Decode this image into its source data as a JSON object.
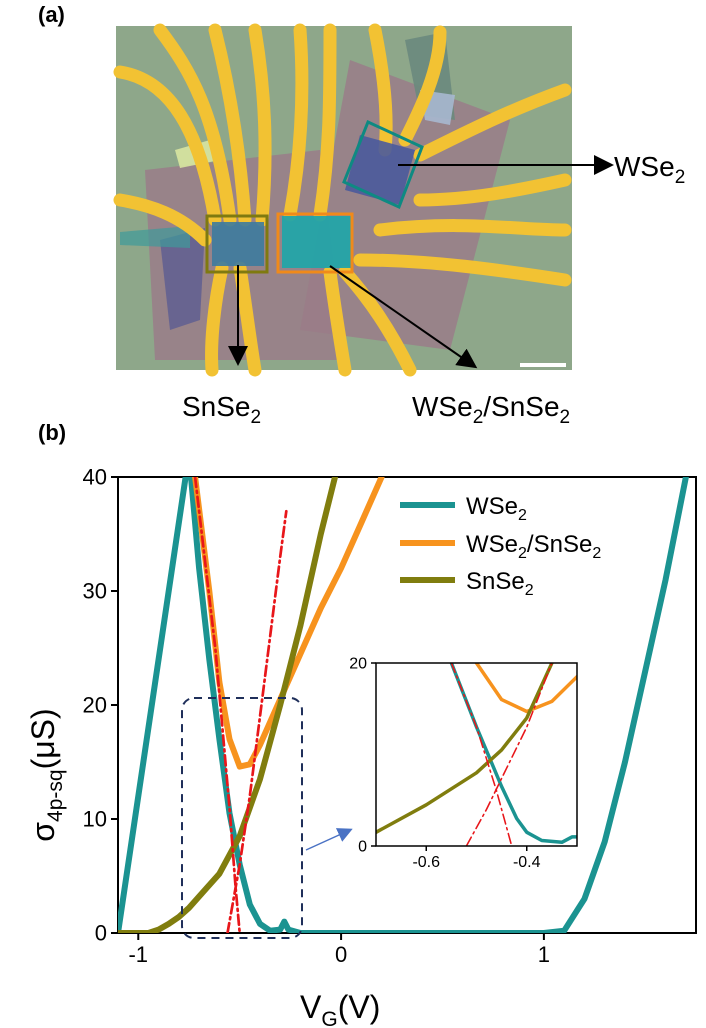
{
  "panel_a": {
    "label": "(a)",
    "annotations": {
      "wse2": {
        "base": "WSe",
        "sub": "2"
      },
      "snse2": {
        "base": "SnSe",
        "sub": "2"
      },
      "hetero": {
        "base1": "WSe",
        "sub1": "2",
        "slash": "/SnSe",
        "sub2": "2"
      }
    },
    "colors": {
      "wse2_box": "#0e8a82",
      "snse2_box": "#7f7a10",
      "hetero_box": "#f08a1a"
    }
  },
  "panel_b": {
    "label": "(b)",
    "chart_data": {
      "type": "line",
      "xlabel": {
        "base": "V",
        "sub": "G",
        "unit": "(V)"
      },
      "ylabel": {
        "base": "σ",
        "sub": "4p-sq",
        "unit": "(μS)"
      },
      "xlim": [
        -1.1,
        1.75
      ],
      "ylim": [
        0,
        40
      ],
      "xticks": [
        -1,
        0,
        1
      ],
      "yticks": [
        0,
        10,
        20,
        30,
        40
      ],
      "legend_position": "top-right",
      "series": [
        {
          "name": "WSe",
          "name_sub": "2",
          "color": "#1b9391",
          "x": [
            -1.1,
            -0.75,
            -0.7,
            -0.65,
            -0.6,
            -0.55,
            -0.5,
            -0.45,
            -0.4,
            -0.35,
            -0.3,
            -0.28,
            -0.26,
            -0.2,
            0,
            0.5,
            1.0,
            1.1,
            1.2,
            1.3,
            1.4,
            1.5,
            1.6,
            1.7
          ],
          "y": [
            0,
            42,
            32,
            24,
            17,
            10.5,
            6,
            2.5,
            0.8,
            0.2,
            0.3,
            1,
            0.3,
            0,
            0,
            0,
            0,
            0.2,
            3,
            8,
            15,
            23,
            31,
            40
          ]
        },
        {
          "name": "WSe",
          "name_sub": "2",
          "name_rest": "/SnSe",
          "name_sub2": "2",
          "color": "#f7931e",
          "x": [
            -0.72,
            -0.65,
            -0.6,
            -0.55,
            -0.5,
            -0.45,
            -0.4,
            -0.3,
            -0.2,
            -0.1,
            0,
            0.1,
            0.2
          ],
          "y": [
            40,
            30,
            22,
            17,
            14.6,
            14.8,
            16.5,
            20.5,
            24.5,
            28.5,
            32,
            36,
            40
          ]
        },
        {
          "name": "SnSe",
          "name_sub": "2",
          "color": "#807d0e",
          "x": [
            -1.1,
            -0.95,
            -0.9,
            -0.85,
            -0.8,
            -0.75,
            -0.7,
            -0.6,
            -0.5,
            -0.4,
            -0.3,
            -0.2,
            -0.1,
            -0.03
          ],
          "y": [
            0,
            0,
            0.3,
            0.8,
            1.4,
            2.2,
            3.2,
            5.2,
            8.5,
            13.5,
            20,
            27,
            35,
            40
          ]
        },
        {
          "name": "",
          "color": "#e8161a",
          "dash": "dashdot",
          "x": [
            -0.72,
            -0.62,
            -0.55,
            -0.52,
            -0.5
          ],
          "y": [
            40,
            25,
            11,
            4,
            0
          ]
        },
        {
          "name": "",
          "color": "#e8161a",
          "dash": "dashdot",
          "x": [
            -0.56,
            -0.5,
            -0.45,
            -0.4,
            -0.35,
            -0.3,
            -0.27
          ],
          "y": [
            0,
            6,
            12,
            19,
            26,
            33,
            37
          ]
        }
      ],
      "inset": {
        "xlim": [
          -0.7,
          -0.3
        ],
        "ylim": [
          0,
          20
        ],
        "xticks": [
          -0.6,
          -0.4
        ],
        "yticks": [
          0,
          20
        ],
        "series": [
          {
            "color": "#1b9391",
            "x": [
              -0.55,
              -0.5,
              -0.45,
              -0.42,
              -0.4,
              -0.37,
              -0.33,
              -0.31,
              -0.3
            ],
            "y": [
              20,
              13,
              6.5,
              3,
              1.5,
              0.6,
              0.4,
              1,
              1
            ]
          },
          {
            "color": "#f7931e",
            "x": [
              -0.5,
              -0.45,
              -0.4,
              -0.35,
              -0.3
            ],
            "y": [
              20,
              16,
              14.7,
              15.8,
              18.5
            ]
          },
          {
            "color": "#807d0e",
            "x": [
              -0.7,
              -0.6,
              -0.5,
              -0.45,
              -0.4,
              -0.35
            ],
            "y": [
              1.5,
              4.5,
              8,
              10.5,
              14,
              20
            ]
          },
          {
            "color": "#e8161a",
            "dash": "dashdot",
            "x": [
              -0.55,
              -0.5,
              -0.46,
              -0.43
            ],
            "y": [
              20,
              13,
              6,
              0
            ]
          },
          {
            "color": "#e8161a",
            "dash": "dashdot",
            "x": [
              -0.52,
              -0.48,
              -0.44,
              -0.4,
              -0.35
            ],
            "y": [
              0,
              4,
              8.5,
              13,
              20
            ]
          }
        ]
      }
    }
  }
}
